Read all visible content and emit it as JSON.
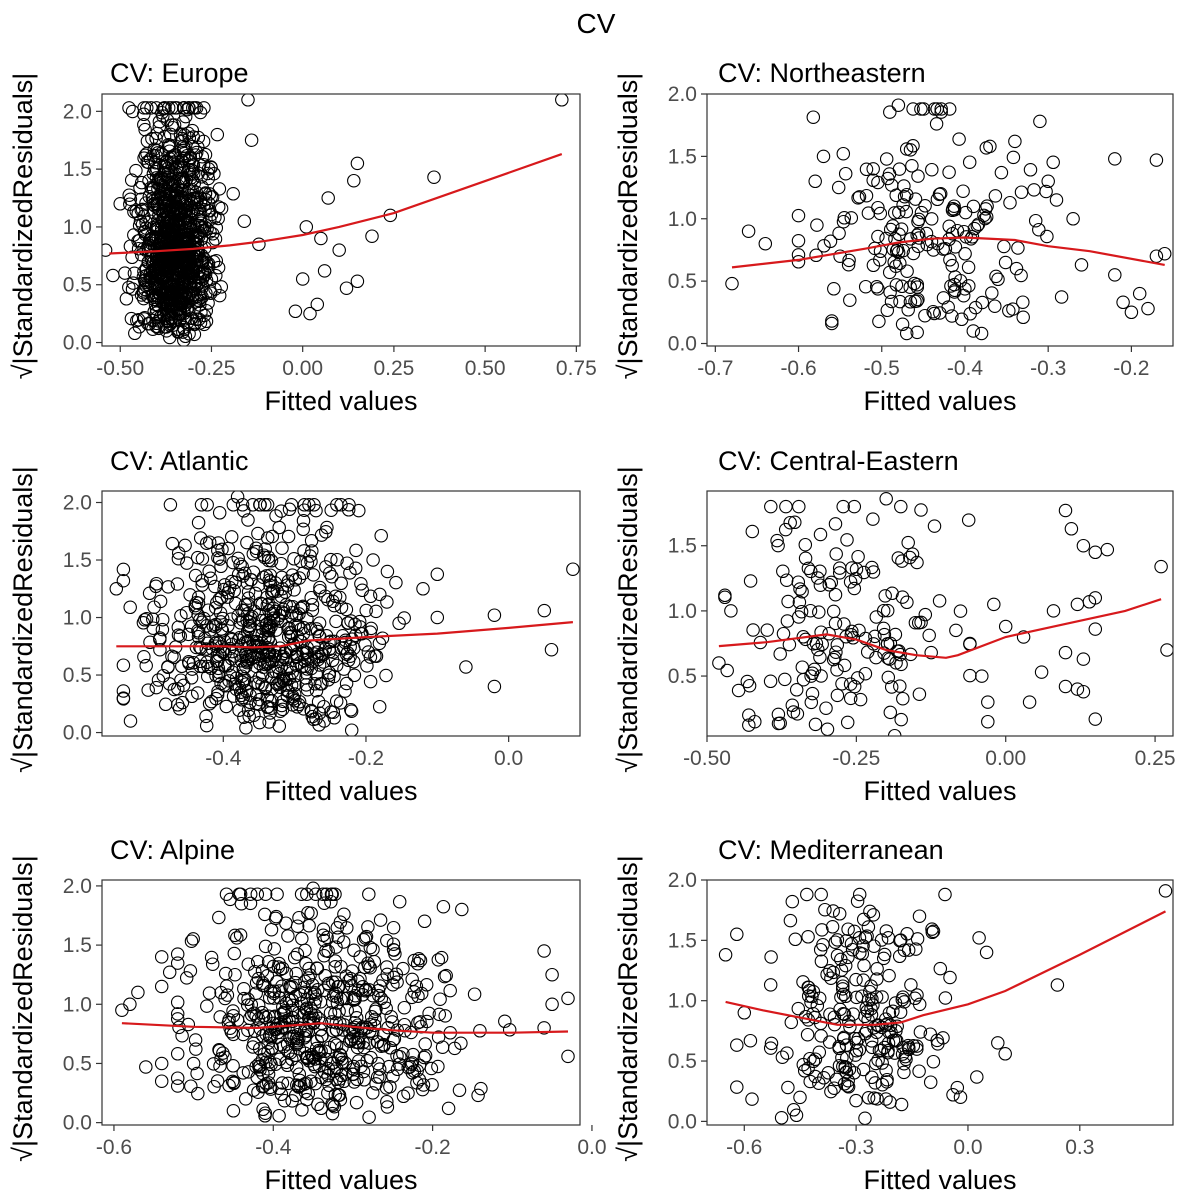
{
  "figure_title": "CV",
  "colors": {
    "points": "#000000",
    "smooth": "#d7191c",
    "axis": "#333333",
    "tick_text": "#4d4d4d"
  },
  "chart_data": [
    {
      "type": "scatter",
      "title": "CV: Europe",
      "xlabel": "Fitted values",
      "ylabel": "√|StandardizedResiduals|",
      "xlim": [
        -0.55,
        0.76
      ],
      "ylim": [
        -0.03,
        2.15
      ],
      "xticks": [
        -0.5,
        -0.25,
        0.0,
        0.25,
        0.5,
        0.75
      ],
      "xtick_labels": [
        "-0.50",
        "-0.25",
        "0.00",
        "0.25",
        "0.50",
        "0.75"
      ],
      "yticks": [
        0.0,
        0.5,
        1.0,
        1.5,
        2.0
      ],
      "ytick_labels": [
        "0.0",
        "0.5",
        "1.0",
        "1.5",
        "2.0"
      ],
      "cloud": {
        "n": 1000,
        "center": -0.35,
        "spread": 0.05,
        "xmin": -0.53,
        "xmax": 0.08
      },
      "points": [
        [
          0.71,
          2.1
        ],
        [
          0.36,
          1.43
        ],
        [
          0.24,
          1.1
        ],
        [
          0.19,
          0.92
        ],
        [
          0.15,
          1.55
        ],
        [
          0.14,
          1.4
        ],
        [
          0.15,
          0.53
        ],
        [
          0.12,
          0.47
        ],
        [
          0.1,
          0.8
        ],
        [
          0.07,
          1.25
        ],
        [
          0.06,
          0.62
        ],
        [
          0.05,
          0.9
        ],
        [
          0.04,
          0.33
        ],
        [
          0.02,
          0.25
        ],
        [
          0.01,
          1.0
        ],
        [
          0.0,
          0.55
        ],
        [
          -0.02,
          0.27
        ],
        [
          -0.15,
          2.1
        ],
        [
          -0.14,
          1.75
        ],
        [
          -0.28,
          1.99
        ],
        [
          -0.16,
          1.05
        ],
        [
          -0.12,
          0.85
        ],
        [
          -0.52,
          0.58
        ],
        [
          -0.54,
          0.8
        ],
        [
          -0.5,
          1.2
        ],
        [
          -0.46,
          0.08
        ]
      ],
      "smooth": [
        [
          -0.53,
          0.77
        ],
        [
          -0.4,
          0.79
        ],
        [
          -0.3,
          0.81
        ],
        [
          -0.2,
          0.84
        ],
        [
          -0.1,
          0.88
        ],
        [
          0.0,
          0.93
        ],
        [
          0.1,
          1.0
        ],
        [
          0.25,
          1.12
        ],
        [
          0.71,
          1.63
        ]
      ]
    },
    {
      "type": "scatter",
      "title": "CV: Northeastern",
      "xlabel": "Fitted values",
      "ylabel": "√|StandardizedResiduals|",
      "xlim": [
        -0.71,
        -0.15
      ],
      "ylim": [
        -0.02,
        2.0
      ],
      "xticks": [
        -0.7,
        -0.6,
        -0.5,
        -0.4,
        -0.3,
        -0.2
      ],
      "xtick_labels": [
        "-0.7",
        "-0.6",
        "-0.5",
        "-0.4",
        "-0.3",
        "-0.2"
      ],
      "yticks": [
        0.0,
        0.5,
        1.0,
        1.5,
        2.0
      ],
      "ytick_labels": [
        "0.0",
        "0.5",
        "1.0",
        "1.5",
        "2.0"
      ],
      "cloud": {
        "n": 200,
        "center": -0.44,
        "spread": 0.07,
        "xmin": -0.6,
        "xmax": -0.25
      },
      "points": [
        [
          -0.68,
          0.48
        ],
        [
          -0.66,
          0.9
        ],
        [
          -0.64,
          0.8
        ],
        [
          -0.58,
          1.3
        ],
        [
          -0.57,
          1.5
        ],
        [
          -0.56,
          0.18
        ],
        [
          -0.56,
          0.16
        ],
        [
          -0.55,
          0.7
        ],
        [
          -0.48,
          1.91
        ],
        [
          -0.31,
          1.78
        ],
        [
          -0.37,
          1.58
        ],
        [
          -0.34,
          1.62
        ],
        [
          -0.22,
          1.48
        ],
        [
          -0.17,
          1.47
        ],
        [
          -0.16,
          0.72
        ],
        [
          -0.17,
          0.7
        ],
        [
          -0.18,
          0.28
        ],
        [
          -0.19,
          0.4
        ],
        [
          -0.2,
          0.25
        ],
        [
          -0.21,
          0.33
        ],
        [
          -0.22,
          0.55
        ],
        [
          -0.26,
          0.63
        ],
        [
          -0.27,
          1.0
        ],
        [
          -0.29,
          1.15
        ],
        [
          -0.3,
          1.3
        ],
        [
          -0.33,
          0.21
        ],
        [
          -0.39,
          0.1
        ],
        [
          -0.38,
          0.08
        ],
        [
          -0.47,
          0.08
        ]
      ],
      "smooth": [
        [
          -0.68,
          0.61
        ],
        [
          -0.6,
          0.67
        ],
        [
          -0.52,
          0.76
        ],
        [
          -0.48,
          0.81
        ],
        [
          -0.44,
          0.84
        ],
        [
          -0.4,
          0.85
        ],
        [
          -0.34,
          0.83
        ],
        [
          -0.3,
          0.78
        ],
        [
          -0.25,
          0.74
        ],
        [
          -0.16,
          0.63
        ]
      ]
    },
    {
      "type": "scatter",
      "title": "CV: Atlantic",
      "xlabel": "Fitted values",
      "ylabel": "√|StandardizedResiduals|",
      "xlim": [
        -0.57,
        0.1
      ],
      "ylim": [
        -0.03,
        2.1
      ],
      "xticks": [
        -0.4,
        -0.2,
        0.0
      ],
      "xtick_labels": [
        "-0.4",
        "-0.2",
        "0.0"
      ],
      "yticks": [
        0.0,
        0.5,
        1.0,
        1.5,
        2.0
      ],
      "ytick_labels": [
        "0.0",
        "0.5",
        "1.0",
        "1.5",
        "2.0"
      ],
      "cloud": {
        "n": 650,
        "center": -0.34,
        "spread": 0.08,
        "xmin": -0.54,
        "xmax": -0.1
      },
      "points": [
        [
          0.09,
          1.42
        ],
        [
          0.06,
          0.72
        ],
        [
          0.05,
          1.06
        ],
        [
          -0.02,
          1.02
        ],
        [
          -0.02,
          0.4
        ],
        [
          -0.06,
          0.57
        ],
        [
          -0.1,
          1.0
        ],
        [
          -0.12,
          1.25
        ],
        [
          -0.55,
          1.25
        ],
        [
          -0.54,
          1.32
        ],
        [
          -0.53,
          0.1
        ],
        [
          -0.38,
          2.05
        ],
        [
          -0.28,
          1.98
        ],
        [
          -0.27,
          1.93
        ],
        [
          -0.21,
          1.93
        ],
        [
          -0.22,
          0.02
        ],
        [
          -0.19,
          1.5
        ],
        [
          -0.17,
          1.4
        ]
      ],
      "smooth": [
        [
          -0.55,
          0.75
        ],
        [
          -0.45,
          0.75
        ],
        [
          -0.4,
          0.75
        ],
        [
          -0.36,
          0.74
        ],
        [
          -0.32,
          0.75
        ],
        [
          -0.28,
          0.8
        ],
        [
          -0.2,
          0.83
        ],
        [
          -0.1,
          0.86
        ],
        [
          0.0,
          0.91
        ],
        [
          0.09,
          0.96
        ]
      ]
    },
    {
      "type": "scatter",
      "title": "CV: Central-Eastern",
      "xlabel": "Fitted values",
      "ylabel": "√|StandardizedResiduals|",
      "xlim": [
        -0.5,
        0.28
      ],
      "ylim": [
        0.04,
        1.92
      ],
      "xticks": [
        -0.5,
        -0.25,
        0.0,
        0.25
      ],
      "xtick_labels": [
        "-0.50",
        "-0.25",
        "0.00",
        "0.25"
      ],
      "yticks": [
        0.5,
        1.0,
        1.5
      ],
      "ytick_labels": [
        "0.5",
        "1.0",
        "1.5"
      ],
      "cloud": {
        "n": 170,
        "center": -0.26,
        "spread": 0.09,
        "xmin": -0.47,
        "xmax": -0.06
      },
      "points": [
        [
          -0.48,
          0.6
        ],
        [
          -0.47,
          1.12
        ],
        [
          -0.46,
          1.0
        ],
        [
          -0.43,
          0.2
        ],
        [
          -0.42,
          0.15
        ],
        [
          -0.2,
          1.86
        ],
        [
          0.1,
          1.77
        ],
        [
          0.11,
          1.63
        ],
        [
          0.13,
          1.5
        ],
        [
          0.15,
          1.45
        ],
        [
          0.17,
          1.47
        ],
        [
          0.14,
          1.07
        ],
        [
          0.12,
          1.05
        ],
        [
          0.15,
          1.1
        ],
        [
          0.15,
          0.86
        ],
        [
          0.13,
          0.63
        ],
        [
          0.13,
          0.38
        ],
        [
          0.12,
          0.4
        ],
        [
          0.15,
          0.17
        ],
        [
          0.1,
          0.42
        ],
        [
          0.1,
          0.68
        ],
        [
          0.08,
          1.0
        ],
        [
          0.06,
          0.53
        ],
        [
          0.04,
          0.3
        ],
        [
          0.03,
          0.8
        ],
        [
          -0.02,
          1.05
        ],
        [
          -0.03,
          0.3
        ],
        [
          -0.04,
          0.5
        ],
        [
          -0.06,
          0.75
        ],
        [
          -0.03,
          0.15
        ],
        [
          0.26,
          1.34
        ],
        [
          0.27,
          0.7
        ],
        [
          0.0,
          0.88
        ]
      ],
      "smooth": [
        [
          -0.48,
          0.73
        ],
        [
          -0.4,
          0.76
        ],
        [
          -0.3,
          0.82
        ],
        [
          -0.25,
          0.78
        ],
        [
          -0.2,
          0.7
        ],
        [
          -0.15,
          0.66
        ],
        [
          -0.1,
          0.64
        ],
        [
          -0.08,
          0.66
        ],
        [
          0.0,
          0.8
        ],
        [
          0.1,
          0.9
        ],
        [
          0.2,
          1.0
        ],
        [
          0.26,
          1.09
        ]
      ]
    },
    {
      "type": "scatter",
      "title": "CV: Alpine",
      "xlabel": "Fitted values",
      "ylabel": "√|StandardizedResiduals|",
      "xlim": [
        -0.615,
        -0.015
      ],
      "ylim": [
        -0.02,
        2.05
      ],
      "xticks": [
        -0.6,
        -0.4,
        -0.2,
        0.0
      ],
      "xtick_labels": [
        "-0.6",
        "-0.4",
        "-0.2",
        "0.0"
      ],
      "yticks": [
        0.0,
        0.5,
        1.0,
        1.5,
        2.0
      ],
      "ytick_labels": [
        "0.0",
        "0.5",
        "1.0",
        "1.5",
        "2.0"
      ],
      "cloud": {
        "n": 600,
        "center": -0.34,
        "spread": 0.08,
        "xmin": -0.52,
        "xmax": -0.06
      },
      "points": [
        [
          -0.59,
          0.95
        ],
        [
          -0.58,
          1.0
        ],
        [
          -0.57,
          1.1
        ],
        [
          -0.56,
          0.47
        ],
        [
          -0.54,
          0.35
        ],
        [
          -0.54,
          0.5
        ],
        [
          -0.54,
          1.15
        ],
        [
          -0.54,
          1.4
        ],
        [
          -0.53,
          1.27
        ],
        [
          -0.5,
          0.5
        ],
        [
          -0.35,
          1.98
        ],
        [
          -0.44,
          1.85
        ],
        [
          -0.06,
          1.45
        ],
        [
          -0.05,
          1.25
        ],
        [
          -0.05,
          1.0
        ],
        [
          -0.06,
          0.8
        ],
        [
          -0.03,
          0.56
        ],
        [
          -0.03,
          1.05
        ],
        [
          -0.45,
          0.1
        ],
        [
          -0.41,
          0.08
        ],
        [
          -0.18,
          0.12
        ]
      ],
      "smooth": [
        [
          -0.59,
          0.84
        ],
        [
          -0.5,
          0.81
        ],
        [
          -0.42,
          0.8
        ],
        [
          -0.38,
          0.82
        ],
        [
          -0.34,
          0.84
        ],
        [
          -0.3,
          0.81
        ],
        [
          -0.25,
          0.78
        ],
        [
          -0.2,
          0.76
        ],
        [
          -0.1,
          0.76
        ],
        [
          -0.03,
          0.77
        ]
      ]
    },
    {
      "type": "scatter",
      "title": "CV: Mediterranean",
      "xlabel": "Fitted values",
      "ylabel": "√|StandardizedResiduals|",
      "xlim": [
        -0.7,
        0.55
      ],
      "ylim": [
        -0.03,
        2.0
      ],
      "xticks": [
        -0.6,
        -0.3,
        0.0,
        0.3
      ],
      "xtick_labels": [
        "-0.6",
        "-0.3",
        "0.0",
        "0.3"
      ],
      "yticks": [
        0.0,
        0.5,
        1.0,
        1.5,
        2.0
      ],
      "ytick_labels": [
        "0.0",
        "0.5",
        "1.0",
        "1.5",
        "2.0"
      ],
      "cloud": {
        "n": 250,
        "center": -0.3,
        "spread": 0.12,
        "xmin": -0.62,
        "xmax": 0.05
      },
      "points": [
        [
          0.53,
          1.91
        ],
        [
          0.24,
          1.13
        ],
        [
          0.1,
          0.56
        ],
        [
          0.08,
          0.65
        ],
        [
          0.05,
          1.4
        ],
        [
          0.03,
          1.52
        ],
        [
          -0.02,
          0.2
        ],
        [
          -0.04,
          0.22
        ],
        [
          -0.13,
          1.7
        ],
        [
          -0.65,
          1.38
        ],
        [
          -0.62,
          1.55
        ],
        [
          -0.6,
          0.9
        ],
        [
          -0.5,
          0.03
        ],
        [
          -0.46,
          0.05
        ]
      ],
      "smooth": [
        [
          -0.65,
          0.99
        ],
        [
          -0.55,
          0.92
        ],
        [
          -0.45,
          0.86
        ],
        [
          -0.35,
          0.8
        ],
        [
          -0.25,
          0.8
        ],
        [
          -0.18,
          0.82
        ],
        [
          -0.12,
          0.88
        ],
        [
          0.0,
          0.97
        ],
        [
          0.1,
          1.08
        ],
        [
          0.3,
          1.38
        ],
        [
          0.53,
          1.74
        ]
      ]
    }
  ]
}
